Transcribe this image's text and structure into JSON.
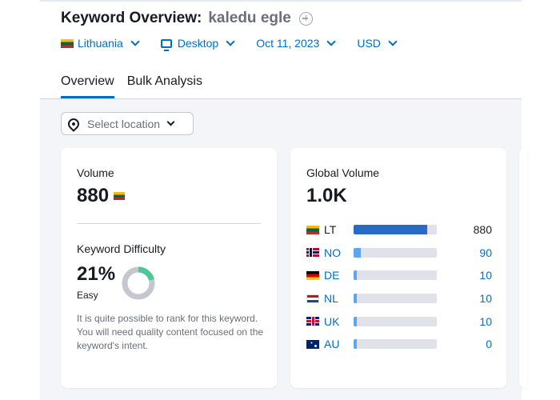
{
  "header": {
    "title_prefix": "Keyword Overview:",
    "keyword": "kaledu egle"
  },
  "filters": {
    "country": "Lithuania",
    "device": "Desktop",
    "date": "Oct 11, 2023",
    "currency": "USD"
  },
  "tabs": [
    {
      "label": "Overview",
      "active": true
    },
    {
      "label": "Bulk Analysis",
      "active": false
    }
  ],
  "location_select": {
    "placeholder": "Select location"
  },
  "volume_card": {
    "volume_label": "Volume",
    "volume_value": "880",
    "kd_label": "Keyword Difficulty",
    "kd_value": "21%",
    "kd_percent": 21,
    "kd_level": "Easy",
    "kd_description": "It is quite possible to rank for this keyword. You will need quality content focused on the keyword's intent.",
    "colors": {
      "kd_fill": "#4cc894",
      "kd_track": "#c5c7cf"
    }
  },
  "global_volume_card": {
    "label": "Global Volume",
    "value": "1.0K",
    "countries": [
      {
        "code": "LT",
        "flag": "flag-lithuania",
        "value": "880",
        "share": 0.88,
        "link": false
      },
      {
        "code": "NO",
        "flag": "flag-norway",
        "value": "90",
        "share": 0.09,
        "link": true
      },
      {
        "code": "DE",
        "flag": "flag-germany",
        "value": "10",
        "share": 0.01,
        "link": true
      },
      {
        "code": "NL",
        "flag": "flag-netherlands",
        "value": "10",
        "share": 0.01,
        "link": true
      },
      {
        "code": "UK",
        "flag": "flag-uk",
        "value": "10",
        "share": 0.01,
        "link": true
      },
      {
        "code": "AU",
        "flag": "flag-australia",
        "value": "0",
        "share": 0.01,
        "link": true
      }
    ]
  }
}
